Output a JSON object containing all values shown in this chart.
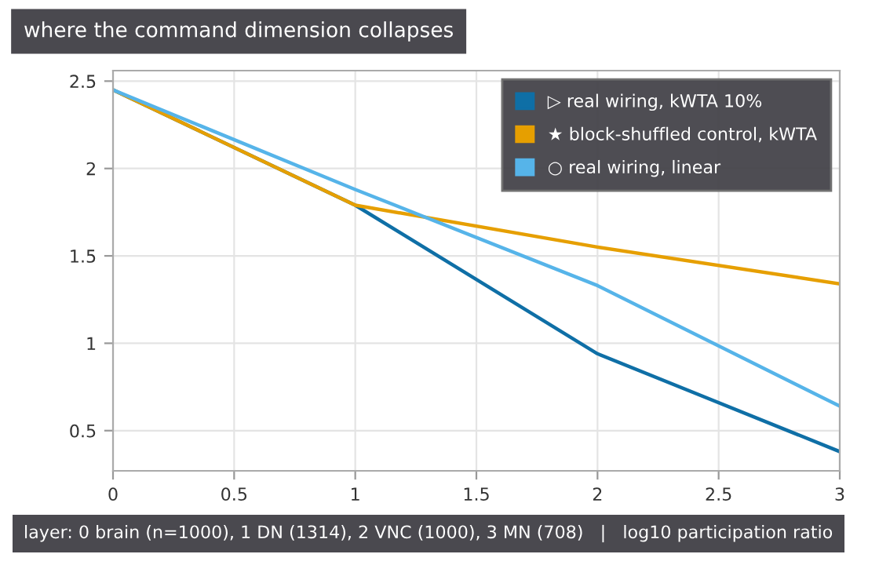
{
  "chart_data": {
    "type": "line",
    "title": "where the command dimension collapses",
    "xlabel": "layer: 0 brain (n=1000), 1 DN (1314), 2 VNC (1000), 3 MN (708)   |   log10 participation ratio",
    "x": [
      0,
      1,
      2,
      3
    ],
    "series": [
      {
        "name": "▷ real wiring, kWTA 10%",
        "color": "#0f6fa6",
        "values": [
          2.45,
          1.79,
          0.94,
          0.38
        ]
      },
      {
        "name": "★ block-shuffled control, kWTA",
        "color": "#e69f00",
        "values": [
          2.45,
          1.79,
          1.55,
          1.34
        ]
      },
      {
        "name": "○ real wiring, linear",
        "color": "#56b4e9",
        "values": [
          2.45,
          1.88,
          1.33,
          0.64
        ]
      }
    ],
    "xlim": [
      0,
      3
    ],
    "xticks": [
      0,
      0.5,
      1,
      1.5,
      2,
      2.5,
      3
    ],
    "ylim": [
      0.27,
      2.56
    ],
    "yticks": [
      0.5,
      1,
      1.5,
      2,
      2.5
    ],
    "grid": true,
    "legend": "top right",
    "marker": "none",
    "line_style": "solid"
  }
}
